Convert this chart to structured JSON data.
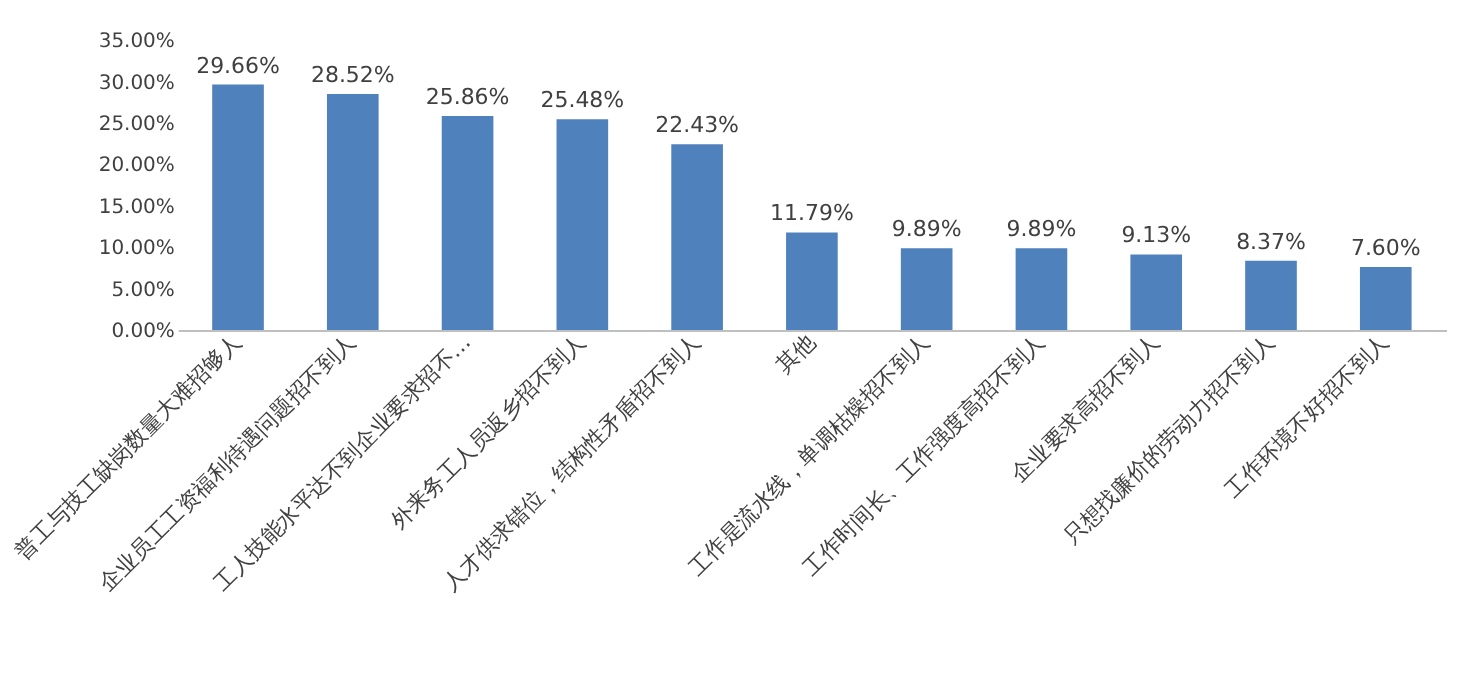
{
  "chart_data": {
    "type": "bar",
    "categories": [
      "普工与技工缺岗数量大难招够人",
      "企业员工工资福利待遇问题招不到人",
      "工人技能水平达不到企业要求招不…",
      "外来务工人员返乡招不到人",
      "人才供求错位，结构性矛盾招不到人",
      "其他",
      "工作是流水线，单调枯燥招不到人",
      "工作时间长、工作强度高招不到人",
      "企业要求高招不到人",
      "只想找廉价的劳动力招不到人",
      "工作环境不好招不到人"
    ],
    "values": [
      29.66,
      28.52,
      25.86,
      25.48,
      22.43,
      11.79,
      9.89,
      9.89,
      9.13,
      8.37,
      7.6
    ],
    "value_labels": [
      "29.66%",
      "28.52%",
      "25.86%",
      "25.48%",
      "22.43%",
      "11.79%",
      "9.89%",
      "9.89%",
      "9.13%",
      "8.37%",
      "7.60%"
    ],
    "color": "#4f81bd",
    "ylim": [
      0,
      35
    ],
    "yticks": [
      {
        "value": 0,
        "label": "0.00%"
      },
      {
        "value": 5,
        "label": "5.00%"
      },
      {
        "value": 10,
        "label": "10.00%"
      },
      {
        "value": 15,
        "label": "15.00%"
      },
      {
        "value": 20,
        "label": "20.00%"
      },
      {
        "value": 25,
        "label": "25.00%"
      },
      {
        "value": 30,
        "label": "30.00%"
      },
      {
        "value": 35,
        "label": "35.00%"
      }
    ],
    "grid": false
  }
}
